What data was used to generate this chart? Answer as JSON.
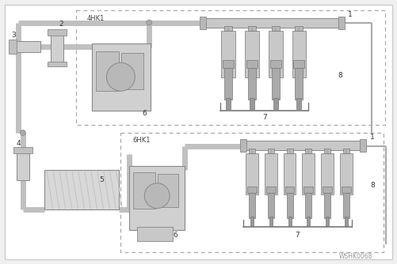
{
  "bg_color": "#f0f0f0",
  "white": "#ffffff",
  "border_color": "#bbbbbb",
  "line_color": "#888888",
  "dark_line": "#555555",
  "dashed_color": "#999999",
  "component_fill": "#d0d0d0",
  "component_edge": "#888888",
  "pipe_color": "#c0c0c0",
  "watermark": "WSHK0068",
  "label_4hk1": "4HK1",
  "label_6hk1": "6HK1",
  "fig_width": 5.01,
  "fig_height": 3.34
}
